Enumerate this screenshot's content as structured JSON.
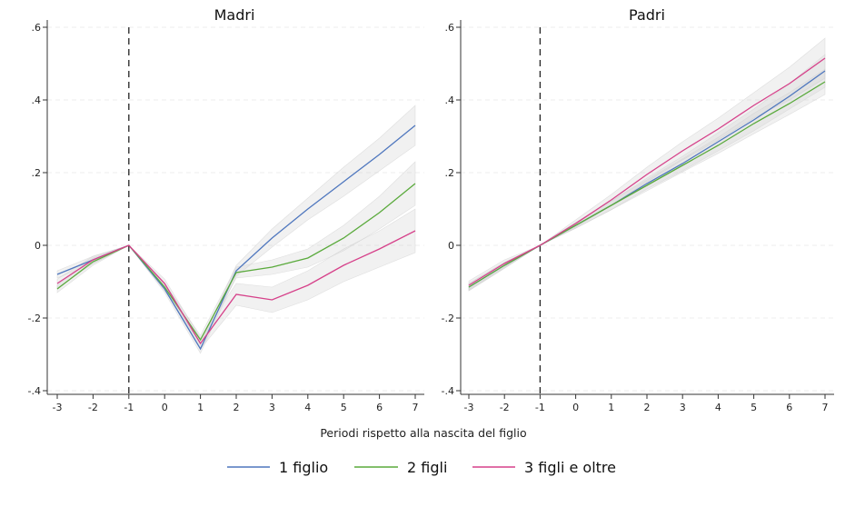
{
  "chart_data": {
    "type": "line",
    "xlabel": "Periodi rispetto alla nascita del figlio",
    "ylabel": "",
    "x": [
      -3,
      -2,
      -1,
      0,
      1,
      2,
      3,
      4,
      5,
      6,
      7
    ],
    "x_ticks": [
      "-3",
      "-2",
      "-1",
      "0",
      "1",
      "2",
      "3",
      "4",
      "5",
      "6",
      "7"
    ],
    "y_ticks": [
      ".6",
      ".4",
      ".2",
      "0",
      "-.2",
      "-.4"
    ],
    "y_tick_values": [
      0.6,
      0.4,
      0.2,
      0,
      -0.2,
      -0.4
    ],
    "ylim": [
      -0.41,
      0.62
    ],
    "xlim": [
      -3,
      7
    ],
    "reference_line_x": -1,
    "grid": true,
    "legend_position": "bottom",
    "legend": [
      {
        "name": "1 figlio",
        "color": "#4f77be"
      },
      {
        "name": "2 figli",
        "color": "#5aaa3c"
      },
      {
        "name": "3 figli e oltre",
        "color": "#d6418a"
      }
    ],
    "panels": [
      {
        "title": "Madri",
        "series": [
          {
            "name": "1 figlio",
            "values": [
              -0.08,
              -0.04,
              0,
              -0.12,
              -0.285,
              -0.07,
              0.02,
              0.1,
              0.175,
              0.25,
              0.33
            ],
            "ci_halfwidth": [
              0.01,
              0.01,
              0,
              0.01,
              0.012,
              0.015,
              0.025,
              0.03,
              0.04,
              0.045,
              0.055
            ]
          },
          {
            "name": "2 figli",
            "values": [
              -0.12,
              -0.045,
              0,
              -0.115,
              -0.26,
              -0.075,
              -0.06,
              -0.035,
              0.02,
              0.09,
              0.17
            ],
            "ci_halfwidth": [
              0.01,
              0.01,
              0,
              0.01,
              0.012,
              0.015,
              0.02,
              0.025,
              0.035,
              0.045,
              0.06
            ]
          },
          {
            "name": "3 figli e oltre",
            "values": [
              -0.105,
              -0.04,
              0,
              -0.105,
              -0.27,
              -0.135,
              -0.15,
              -0.11,
              -0.055,
              -0.01,
              0.04
            ],
            "ci_halfwidth": [
              0.012,
              0.01,
              0,
              0.012,
              0.015,
              0.03,
              0.035,
              0.04,
              0.045,
              0.05,
              0.06
            ]
          }
        ]
      },
      {
        "title": "Padri",
        "series": [
          {
            "name": "1 figlio",
            "values": [
              -0.115,
              -0.055,
              0,
              0.055,
              0.11,
              0.17,
              0.225,
              0.285,
              0.345,
              0.41,
              0.48
            ],
            "ci_halfwidth": [
              0.01,
              0.008,
              0,
              0.008,
              0.012,
              0.015,
              0.02,
              0.025,
              0.03,
              0.035,
              0.045
            ]
          },
          {
            "name": "2 figli",
            "values": [
              -0.115,
              -0.055,
              0,
              0.055,
              0.11,
              0.165,
              0.22,
              0.275,
              0.335,
              0.39,
              0.45
            ],
            "ci_halfwidth": [
              0.01,
              0.008,
              0,
              0.008,
              0.012,
              0.015,
              0.018,
              0.022,
              0.028,
              0.03,
              0.035
            ]
          },
          {
            "name": "3 figli e oltre",
            "values": [
              -0.11,
              -0.05,
              0,
              0.06,
              0.125,
              0.195,
              0.26,
              0.32,
              0.385,
              0.445,
              0.515
            ],
            "ci_halfwidth": [
              0.012,
              0.01,
              0,
              0.01,
              0.015,
              0.02,
              0.025,
              0.03,
              0.035,
              0.045,
              0.055
            ]
          }
        ]
      }
    ]
  }
}
